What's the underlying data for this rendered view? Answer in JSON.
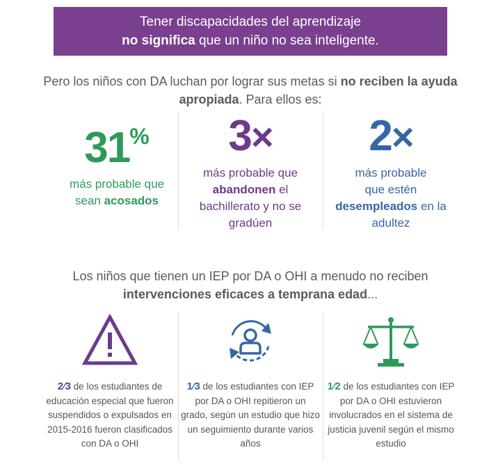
{
  "banner": {
    "line1": "Tener discapacidades del aprendizaje",
    "line2_bold": "no significa",
    "line2_rest": " que un niño no sea inteligente."
  },
  "intro": {
    "text_a": "Pero los niños con DA luchan por lograr sus metas si ",
    "bold_a": "no reciben la ayuda apropiada",
    "text_b": ". Para ellos es:"
  },
  "stats": [
    {
      "value": "31",
      "suffix": "%",
      "desc_a": "más probable que",
      "desc_b": "sean ",
      "desc_bold": "acosados",
      "desc_c": "",
      "color": "#2e9a5a"
    },
    {
      "value": "3",
      "suffix": "×",
      "desc_a": "más probable que",
      "desc_bold": "abandonen",
      "desc_c": " el bachillerato y no se gradúen",
      "color": "#6d3a8a"
    },
    {
      "value": "2",
      "suffix": "×",
      "desc_a": "más probable",
      "desc_b": "que estén",
      "desc_bold": "desempleados",
      "desc_c": " en la adultez",
      "color": "#3667a5"
    }
  ],
  "intro2": {
    "text": "Los niños que tienen un IEP por DA o OHI a menudo no reciben",
    "bold": "intervenciones eficaces a temprana edad",
    "trail": "..."
  },
  "facts": [
    {
      "icon": "warning-triangle-icon",
      "fraction": "2⁄3",
      "text": " de los estudiantes de educación especial que fueron suspendidos o expulsados en 2015-2016 fueron clasificados con DA o OHI",
      "color": "#6d3a8a"
    },
    {
      "icon": "user-cycle-icon",
      "fraction": "1⁄3",
      "text": " de los estudiantes con IEP por DA o OHI repitieron un grado, según un estudio que hizo un seguimiento durante varios años",
      "color": "#3667a5"
    },
    {
      "icon": "scales-of-justice-icon",
      "fraction": "1⁄2",
      "text": " de los estudiantes con IEP por DA o OHI estuvieron involucrados en el sistema de justicia juvenil según el mismo estudio",
      "color": "#2e9a5a"
    }
  ]
}
